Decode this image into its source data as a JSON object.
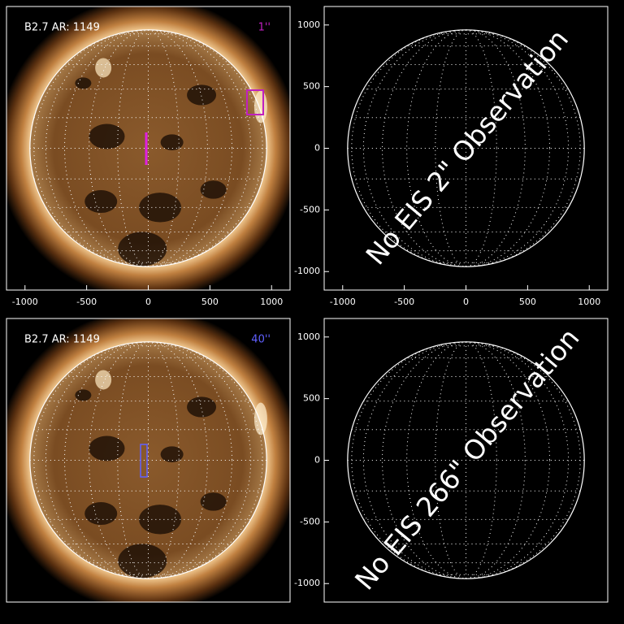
{
  "chart_data": [
    {
      "type": "image",
      "title": "B2.7 AR: 1149",
      "slit_label": "1''",
      "slit_color": "#c020c0",
      "xlim": [
        -1150,
        1150
      ],
      "ylim": [
        -1150,
        1150
      ],
      "xticks": [
        -1000,
        -500,
        0,
        500,
        1000
      ]
    },
    {
      "type": "empty",
      "annotation": "No EIS 2\" Observation",
      "xlim": [
        -1150,
        1150
      ],
      "ylim": [
        -1150,
        1150
      ],
      "xticks": [
        -1000,
        -500,
        0,
        500,
        1000
      ],
      "yticks": [
        -1000,
        -500,
        0,
        500,
        1000
      ]
    },
    {
      "type": "image",
      "title": "B2.7 AR: 1149",
      "slit_label": "40''",
      "slit_color": "#6060ff",
      "xlim": [
        -1150,
        1150
      ],
      "ylim": [
        -1150,
        1150
      ]
    },
    {
      "type": "empty",
      "annotation": "No EIS 266\" Observation",
      "xlim": [
        -1150,
        1150
      ],
      "ylim": [
        -1150,
        1150
      ],
      "yticks": [
        -1000,
        -500,
        0,
        500,
        1000
      ]
    }
  ]
}
